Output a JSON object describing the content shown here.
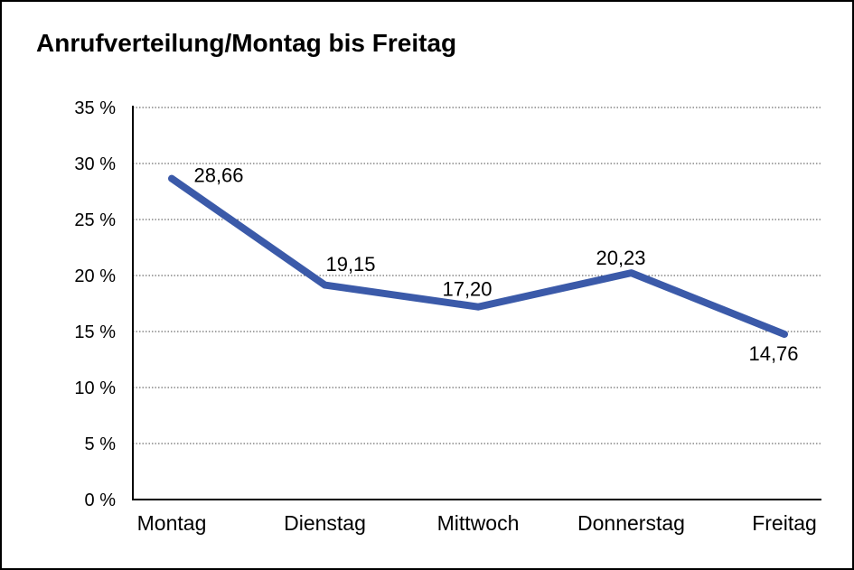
{
  "chart_data": {
    "type": "line",
    "title": "Anrufverteilung/Montag bis Freitag",
    "categories": [
      "Montag",
      "Dienstag",
      "Mittwoch",
      "Donnerstag",
      "Freitag"
    ],
    "series": [
      {
        "values": [
          28.66,
          19.15,
          17.2,
          20.23,
          14.76
        ],
        "value_labels": [
          "28,66",
          "19,15",
          "17,20",
          "20,23",
          "14,76"
        ],
        "color": "#3b5aa9"
      }
    ],
    "y_axis": {
      "min": 0,
      "max": 35,
      "step": 5,
      "tick_labels": [
        "0 %",
        "5 %",
        "10 %",
        "15 %",
        "20 %",
        "25 %",
        "30 %",
        "35 %"
      ]
    },
    "x_axis_label": "",
    "y_axis_label": "",
    "legend": "none",
    "grid": "horizontal-dotted",
    "axis_color": "#000000",
    "grid_color": "#4a4a4a"
  }
}
